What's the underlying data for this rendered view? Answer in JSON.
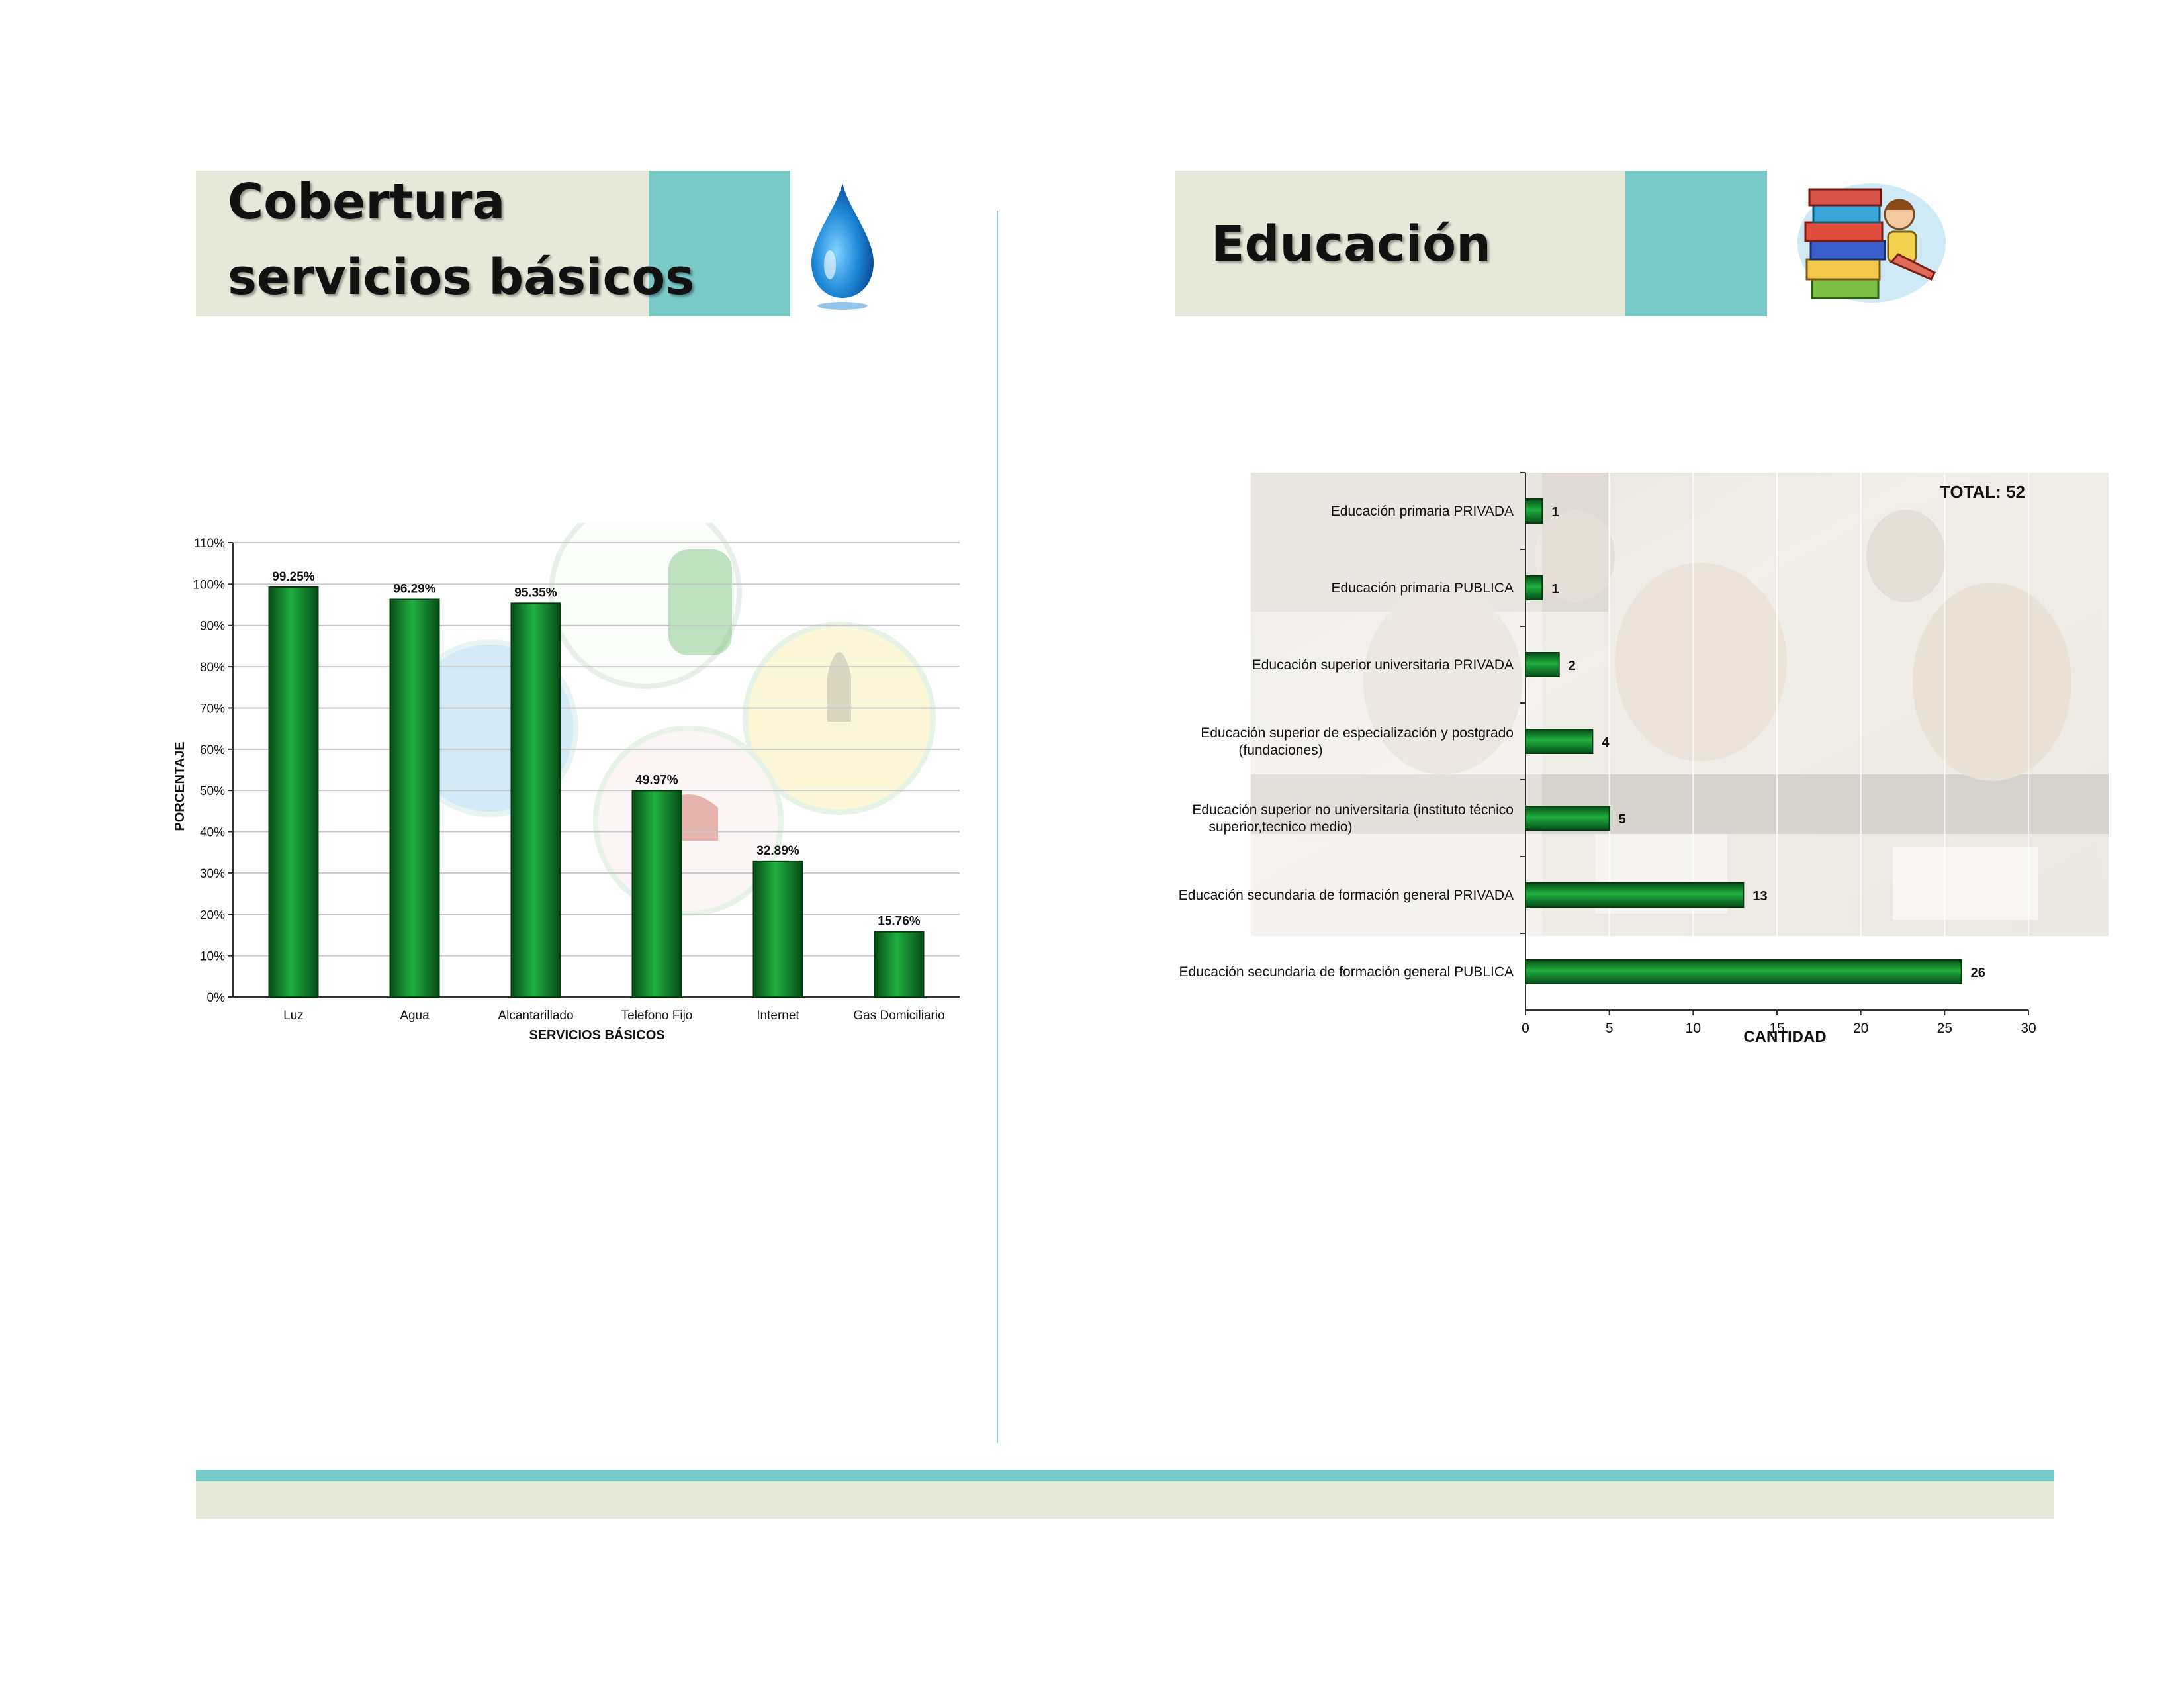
{
  "left_panel": {
    "title_line1": "Cobertura",
    "title_line2": "servicios básicos",
    "icon": "water-drop-icon",
    "background_icons": [
      "gas-cylinder-icon",
      "light-bulb-icon",
      "telephone-icon",
      "globe-icon"
    ]
  },
  "right_panel": {
    "title": "Educación",
    "icon": "books-clipart-icon",
    "background_image": "classroom-photo"
  },
  "colors": {
    "accent": "#79c9c6",
    "title_bg": "#e6e8da",
    "bar_green": "#0e8a2c"
  },
  "chart_data": [
    {
      "type": "bar",
      "categories": [
        "Luz",
        "Agua",
        "Alcantarillado",
        "Telefono Fijo",
        "Internet",
        "Gas Domiciliario"
      ],
      "values": [
        99.25,
        96.29,
        95.35,
        49.97,
        32.89,
        15.76
      ],
      "value_labels": [
        "99.25%",
        "96.29%",
        "95.35%",
        "49.97%",
        "32.89%",
        "15.76%"
      ],
      "xlabel": "SERVICIOS BÁSICOS",
      "ylabel": "PORCENTAJE",
      "ylim": [
        0,
        110
      ],
      "ytick_labels": [
        "0%",
        "10%",
        "20%",
        "30%",
        "40%",
        "50%",
        "60%",
        "70%",
        "80%",
        "90%",
        "100%",
        "110%"
      ],
      "grid": true
    },
    {
      "type": "bar",
      "orientation": "horizontal",
      "categories": [
        "Educación primaria PRIVADA",
        "Educación primaria PUBLICA",
        "Educación superior universitaria PRIVADA",
        "Educación superior de especialización y postgrado (fundaciones)",
        "Educación superior no universitaria (instituto técnico superior,tecnico medio)",
        "Educación secundaria de formación general PRIVADA",
        "Educación secundaria de formación general PUBLICA"
      ],
      "values": [
        1,
        1,
        2,
        4,
        5,
        13,
        26
      ],
      "xlabel": "CANTIDAD",
      "xlim": [
        0,
        30
      ],
      "xtick_labels": [
        "0",
        "5",
        "10",
        "15",
        "20",
        "25",
        "30"
      ],
      "annotation": "TOTAL: 52",
      "grid": true
    }
  ]
}
